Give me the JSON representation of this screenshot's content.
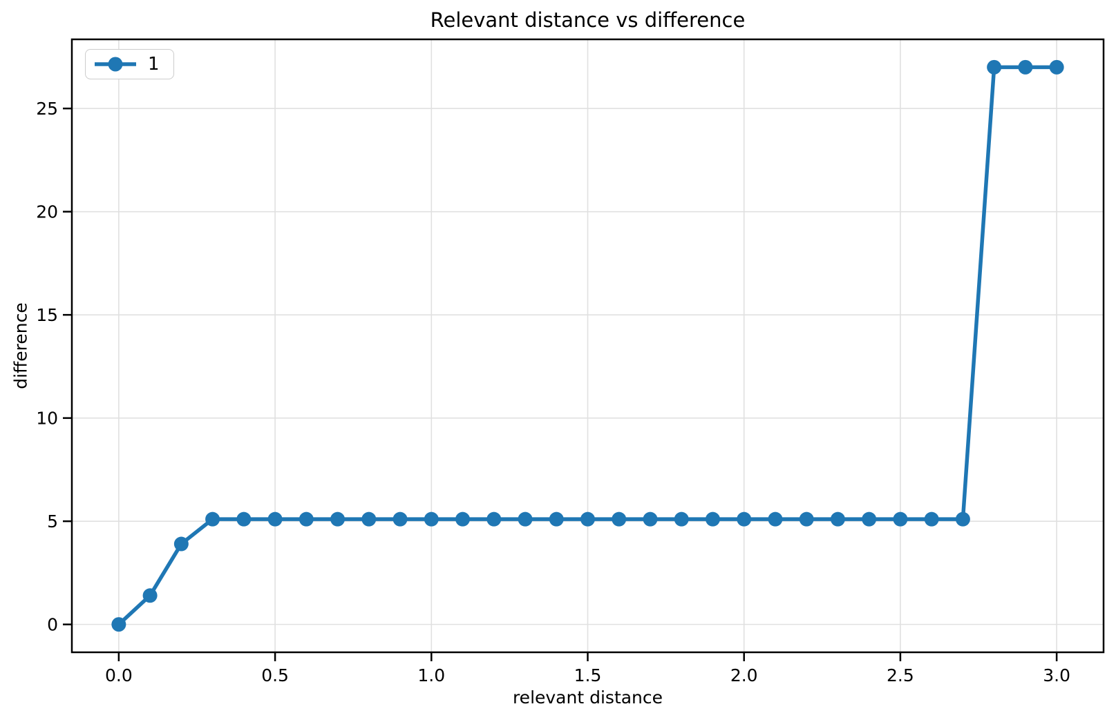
{
  "figure": {
    "background": "#ffffff"
  },
  "chart_data": {
    "type": "line",
    "title": "Relevant distance vs difference",
    "xlabel": "relevant distance",
    "ylabel": "difference",
    "x": [
      0.0,
      0.1,
      0.2,
      0.3,
      0.4,
      0.5,
      0.6,
      0.7,
      0.8,
      0.9,
      1.0,
      1.1,
      1.2,
      1.3,
      1.4,
      1.5,
      1.6,
      1.7,
      1.8,
      1.9,
      2.0,
      2.1,
      2.2,
      2.3,
      2.4,
      2.5,
      2.6,
      2.7,
      2.8,
      2.9,
      3.0
    ],
    "series": [
      {
        "name": "1",
        "color": "#1f77b4",
        "values": [
          0,
          1.4,
          3.9,
          5.1,
          5.1,
          5.1,
          5.1,
          5.1,
          5.1,
          5.1,
          5.1,
          5.1,
          5.1,
          5.1,
          5.1,
          5.1,
          5.1,
          5.1,
          5.1,
          5.1,
          5.1,
          5.1,
          5.1,
          5.1,
          5.1,
          5.1,
          5.1,
          5.1,
          27,
          27,
          27
        ]
      }
    ],
    "xlim": [
      -0.15,
      3.15
    ],
    "ylim": [
      -1.35,
      28.35
    ],
    "x_ticks": {
      "values": [
        0.0,
        0.5,
        1.0,
        1.5,
        2.0,
        2.5,
        3.0
      ],
      "labels": [
        "0.0",
        "0.5",
        "1.0",
        "1.5",
        "2.0",
        "2.5",
        "3.0"
      ]
    },
    "y_ticks": {
      "values": [
        0,
        5,
        10,
        15,
        20,
        25
      ],
      "labels": [
        "0",
        "5",
        "10",
        "15",
        "20",
        "25"
      ]
    },
    "grid": true,
    "grid_color": "#e0e0e0",
    "axis_color": "#000000",
    "legend": {
      "position": "upper left",
      "entries": [
        "1"
      ]
    }
  }
}
